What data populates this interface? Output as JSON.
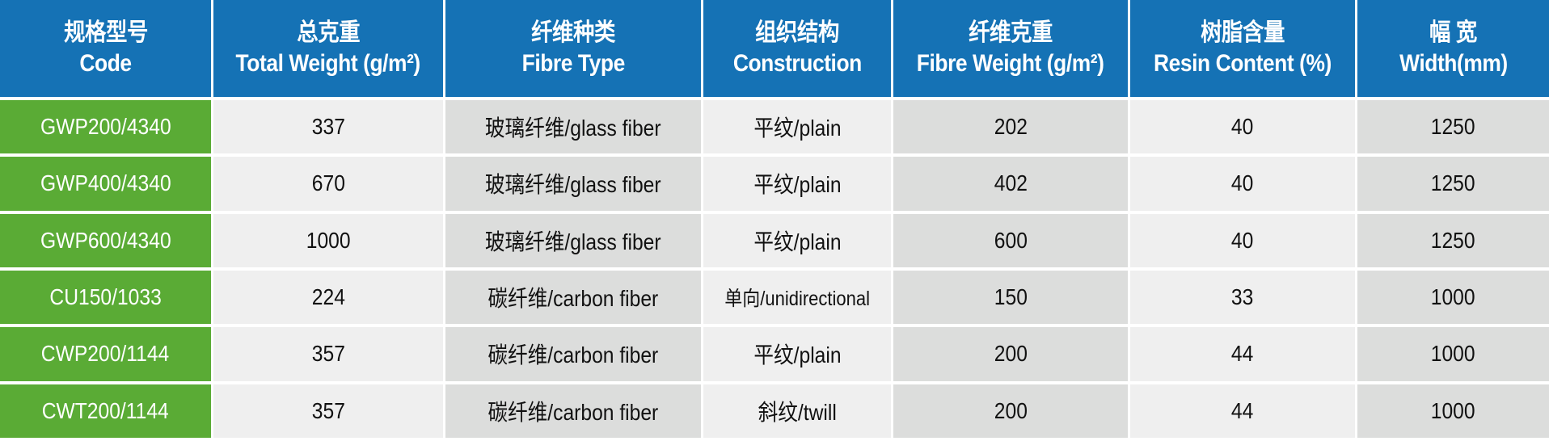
{
  "colors": {
    "header_bg": "#1572b5",
    "code_bg": "#5aab35",
    "cell_light": "#efefef",
    "cell_dark": "#dcdddc"
  },
  "headers": [
    {
      "zh": "规格型号",
      "en": "Code"
    },
    {
      "zh": "总克重",
      "en": "Total Weight (g/m²)"
    },
    {
      "zh": "纤维种类",
      "en": "Fibre Type"
    },
    {
      "zh": "组织结构",
      "en": "Construction"
    },
    {
      "zh": "纤维克重",
      "en": "Fibre Weight (g/m²)"
    },
    {
      "zh": "树脂含量",
      "en": "Resin Content (%)"
    },
    {
      "zh": "幅 宽",
      "en": "Width(mm)"
    }
  ],
  "rows": [
    [
      "GWP200/4340",
      "337",
      "玻璃纤维/glass fiber",
      "平纹/plain",
      "202",
      "40",
      "1250"
    ],
    [
      "GWP400/4340",
      "670",
      "玻璃纤维/glass fiber",
      "平纹/plain",
      "402",
      "40",
      "1250"
    ],
    [
      "GWP600/4340",
      "1000",
      "玻璃纤维/glass fiber",
      "平纹/plain",
      "600",
      "40",
      "1250"
    ],
    [
      "CU150/1033",
      "224",
      "碳纤维/carbon fiber",
      "单向/unidirectional",
      "150",
      "33",
      "1000"
    ],
    [
      "CWP200/1144",
      "357",
      "碳纤维/carbon fiber",
      "平纹/plain",
      "200",
      "44",
      "1000"
    ],
    [
      "CWT200/1144",
      "357",
      "碳纤维/carbon fiber",
      "斜纹/twill",
      "200",
      "44",
      "1000"
    ]
  ]
}
